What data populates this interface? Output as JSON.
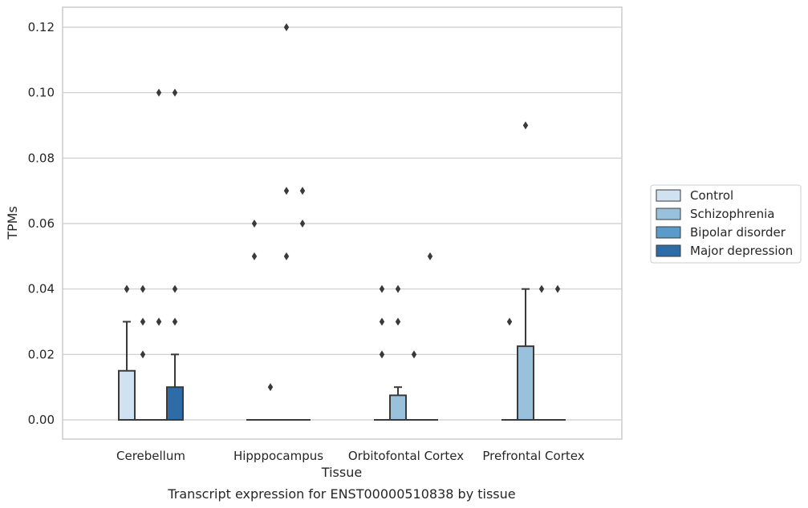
{
  "chart_data": {
    "type": "box",
    "title": "",
    "caption": "Transcript expression for ENST00000510838 by tissue",
    "xlabel": "Tissue",
    "ylabel": "TPMs",
    "ylim": [
      -0.006,
      0.126
    ],
    "yticks": [
      0.0,
      0.02,
      0.04,
      0.06,
      0.08,
      0.1,
      0.12
    ],
    "ytick_labels": [
      "0.00",
      "0.02",
      "0.04",
      "0.06",
      "0.08",
      "0.10",
      "0.12"
    ],
    "grid": "horizontal",
    "legend_position": "right",
    "categories": [
      "Cerebellum",
      "Hipppocampus",
      "Orbitofontal Cortex",
      "Prefrontal Cortex"
    ],
    "series": [
      {
        "name": "Control",
        "color": "#d0e1f2",
        "boxes": [
          {
            "q1": 0.0,
            "median": 0.0,
            "q3": 0.015,
            "whisker_low": 0.0,
            "whisker_high": 0.03,
            "outliers": [
              0.04,
              0.04
            ]
          },
          {
            "q1": 0.0,
            "median": 0.0,
            "q3": 0.0,
            "whisker_low": 0.0,
            "whisker_high": 0.0,
            "outliers": [
              0.06,
              0.05
            ]
          },
          {
            "q1": 0.0,
            "median": 0.0,
            "q3": 0.0,
            "whisker_low": 0.0,
            "whisker_high": 0.0,
            "outliers": [
              0.04,
              0.03,
              0.02
            ]
          },
          {
            "q1": 0.0,
            "median": 0.0,
            "q3": 0.0,
            "whisker_low": 0.0,
            "whisker_high": 0.0,
            "outliers": [
              0.03
            ]
          }
        ]
      },
      {
        "name": "Schizophrenia",
        "color": "#9ac1dc",
        "boxes": [
          {
            "q1": 0.0,
            "median": 0.0,
            "q3": 0.0,
            "whisker_low": 0.0,
            "whisker_high": 0.0,
            "outliers": [
              0.04,
              0.03,
              0.02
            ]
          },
          {
            "q1": 0.0,
            "median": 0.0,
            "q3": 0.0,
            "whisker_low": 0.0,
            "whisker_high": 0.0,
            "outliers": [
              0.01
            ]
          },
          {
            "q1": 0.0,
            "median": 0.0,
            "q3": 0.0075,
            "whisker_low": 0.0,
            "whisker_high": 0.01,
            "outliers": [
              0.04,
              0.03
            ]
          },
          {
            "q1": 0.0,
            "median": 0.0,
            "q3": 0.0225,
            "whisker_low": 0.0,
            "whisker_high": 0.04,
            "outliers": [
              0.09
            ]
          }
        ]
      },
      {
        "name": "Bipolar disorder",
        "color": "#5a9bc9",
        "boxes": [
          {
            "q1": 0.0,
            "median": 0.0,
            "q3": 0.0,
            "whisker_low": 0.0,
            "whisker_high": 0.0,
            "outliers": [
              0.1,
              0.03,
              0.03
            ]
          },
          {
            "q1": 0.0,
            "median": 0.0,
            "q3": 0.0,
            "whisker_low": 0.0,
            "whisker_high": 0.0,
            "outliers": [
              0.12,
              0.07,
              0.05
            ]
          },
          {
            "q1": 0.0,
            "median": 0.0,
            "q3": 0.0,
            "whisker_low": 0.0,
            "whisker_high": 0.0,
            "outliers": [
              0.02
            ]
          },
          {
            "q1": 0.0,
            "median": 0.0,
            "q3": 0.0,
            "whisker_low": 0.0,
            "whisker_high": 0.0,
            "outliers": [
              0.04
            ]
          }
        ]
      },
      {
        "name": "Major depression",
        "color": "#2d6ca6",
        "boxes": [
          {
            "q1": 0.0,
            "median": 0.0,
            "q3": 0.01,
            "whisker_low": 0.0,
            "whisker_high": 0.02,
            "outliers": [
              0.1,
              0.04,
              0.03
            ]
          },
          {
            "q1": 0.0,
            "median": 0.0,
            "q3": 0.0,
            "whisker_low": 0.0,
            "whisker_high": 0.0,
            "outliers": [
              0.07,
              0.06
            ]
          },
          {
            "q1": 0.0,
            "median": 0.0,
            "q3": 0.0,
            "whisker_low": 0.0,
            "whisker_high": 0.0,
            "outliers": [
              0.05
            ]
          },
          {
            "q1": 0.0,
            "median": 0.0,
            "q3": 0.0,
            "whisker_low": 0.0,
            "whisker_high": 0.0,
            "outliers": [
              0.04
            ]
          }
        ]
      }
    ]
  }
}
